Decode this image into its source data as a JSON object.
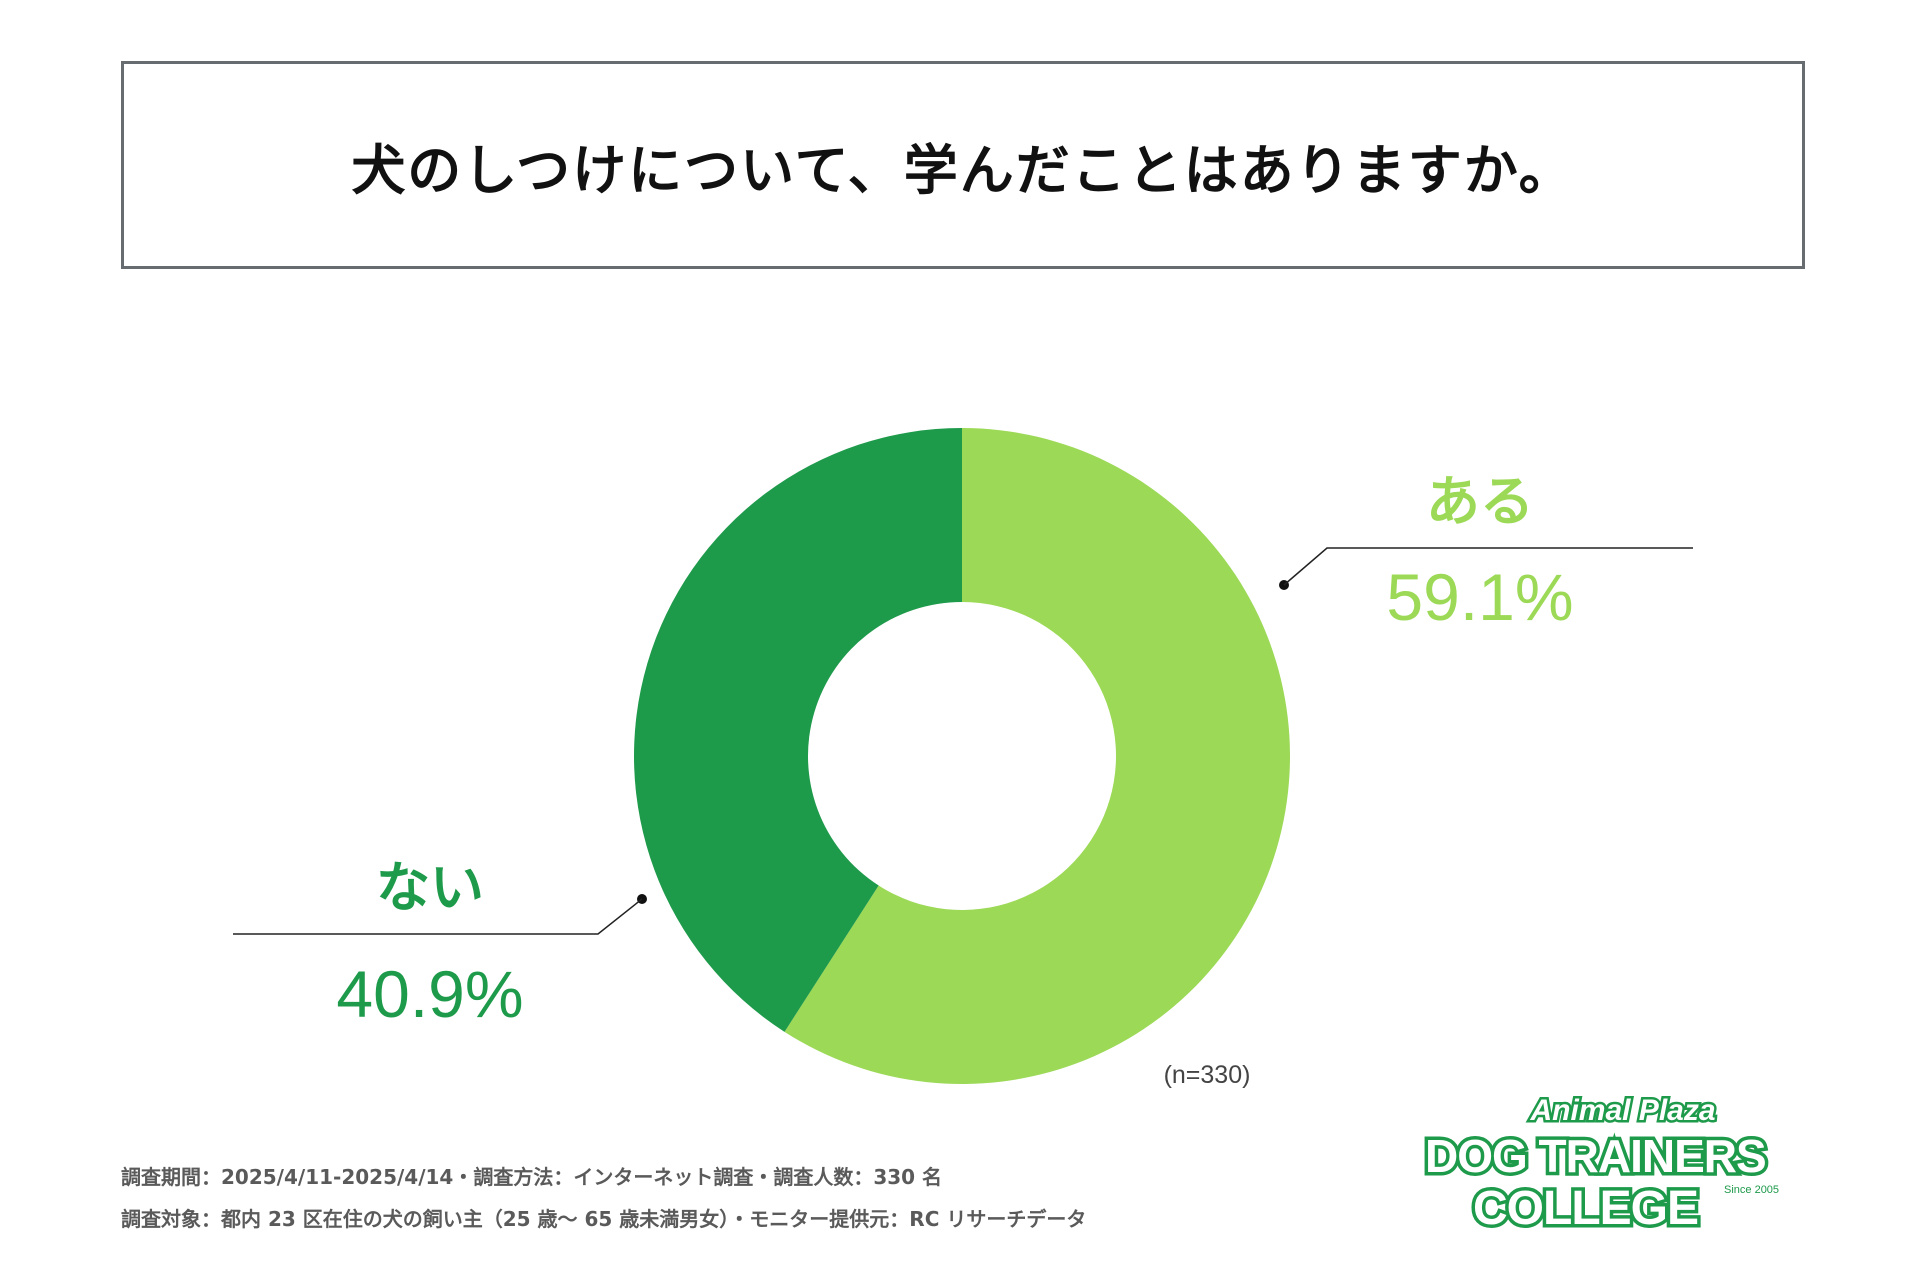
{
  "title": "犬のしつけについて、学んだことはありますか。",
  "chart_data": {
    "type": "pie",
    "donut": true,
    "title": "犬のしつけについて、学んだことはありますか。",
    "n_label": "(n=330)",
    "slices": [
      {
        "label": "ある",
        "value": 59.1,
        "value_label": "59.1%",
        "color": "#9cd956"
      },
      {
        "label": "ない",
        "value": 40.9,
        "value_label": "40.9%",
        "color": "#1e9a4b"
      }
    ]
  },
  "footnotes": {
    "line1": "調査期間：2025/4/11-2025/4/14・調査方法：インターネット調査・調査人数：330 名",
    "line2": "調査対象：都内 23 区在住の犬の飼い主（25 歳〜 65 歳未満男女）・モニター提供元：RC リサーチデータ"
  },
  "logo": {
    "line1": "Animal Plaza",
    "line2": "DOG TRAINERS",
    "line3": "COLLEGE",
    "since": "Since 2005",
    "color": "#1e9a4b"
  }
}
